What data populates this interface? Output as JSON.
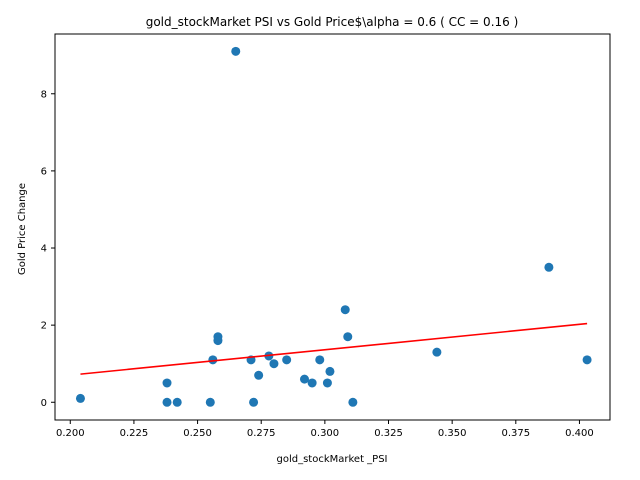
{
  "chart_data": {
    "type": "scatter",
    "title": "gold_stockMarket  PSI vs Gold Price$\\alpha = 0.6 ( CC = 0.16 )",
    "xlabel": "gold_stockMarket _PSI",
    "ylabel": "Gold Price Change",
    "xlim": [
      0.194,
      0.412
    ],
    "ylim": [
      -0.46,
      9.55
    ],
    "x_ticks": [
      0.2,
      0.225,
      0.25,
      0.275,
      0.3,
      0.325,
      0.35,
      0.375,
      0.4
    ],
    "x_tick_labels": [
      "0.200",
      "0.225",
      "0.250",
      "0.275",
      "0.300",
      "0.325",
      "0.350",
      "0.375",
      "0.400"
    ],
    "y_ticks": [
      0,
      2,
      4,
      6,
      8
    ],
    "y_tick_labels": [
      "0",
      "2",
      "4",
      "6",
      "8"
    ],
    "grid": false,
    "series": [
      {
        "kind": "points",
        "color": "#1f77b4",
        "points": [
          [
            0.204,
            0.1
          ],
          [
            0.238,
            0.5
          ],
          [
            0.238,
            0.0
          ],
          [
            0.242,
            0.0
          ],
          [
            0.255,
            0.0
          ],
          [
            0.256,
            1.1
          ],
          [
            0.258,
            1.7
          ],
          [
            0.258,
            1.6
          ],
          [
            0.265,
            9.1
          ],
          [
            0.271,
            1.1
          ],
          [
            0.272,
            0.0
          ],
          [
            0.274,
            0.7
          ],
          [
            0.278,
            1.2
          ],
          [
            0.28,
            1.0
          ],
          [
            0.285,
            1.1
          ],
          [
            0.292,
            0.6
          ],
          [
            0.295,
            0.5
          ],
          [
            0.298,
            1.1
          ],
          [
            0.301,
            0.5
          ],
          [
            0.302,
            0.8
          ],
          [
            0.308,
            2.4
          ],
          [
            0.309,
            1.7
          ],
          [
            0.311,
            0.0
          ],
          [
            0.344,
            1.3
          ],
          [
            0.388,
            3.5
          ],
          [
            0.403,
            1.1
          ]
        ]
      },
      {
        "kind": "fit-line",
        "color": "#ff0000",
        "points": [
          [
            0.204,
            0.73
          ],
          [
            0.403,
            2.04
          ]
        ]
      }
    ]
  }
}
